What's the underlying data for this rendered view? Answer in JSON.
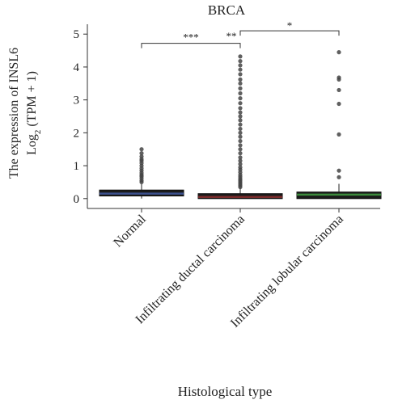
{
  "chart_data": {
    "type": "box",
    "title": "BRCA",
    "ylabel_line1": "The expression of INSL6",
    "ylabel_line2_prefix": "Log",
    "ylabel_line2_sub": "2",
    "ylabel_line2_suffix": " (TPM + 1)",
    "xlabel": "Histological type",
    "ylim": [
      -0.3,
      5.3
    ],
    "yticks": [
      "0",
      "1",
      "2",
      "3",
      "4",
      "5"
    ],
    "categories": [
      "Normal",
      "Infiltrating ductal carcinoma",
      "Infiltrating lobular carcinoma"
    ],
    "boxes": [
      {
        "name": "Normal",
        "color": "#3b4f8c",
        "q1": 0.08,
        "median": 0.15,
        "q3": 0.26,
        "whisker_low": 0.0,
        "whisker_high": 0.45,
        "outliers": [
          0.5,
          0.55,
          0.62,
          0.68,
          0.72,
          0.78,
          0.85,
          0.92,
          1.0,
          1.08,
          1.15,
          1.2,
          1.28,
          1.38,
          1.5
        ]
      },
      {
        "name": "Infiltrating ductal carcinoma",
        "color": "#7a2a2a",
        "q1": 0.0,
        "median": 0.05,
        "q3": 0.15,
        "whisker_low": 0.0,
        "whisker_high": 0.33,
        "outliers": [
          0.35,
          0.4,
          0.45,
          0.5,
          0.55,
          0.6,
          0.66,
          0.72,
          0.8,
          0.88,
          0.95,
          1.05,
          1.15,
          1.25,
          1.38,
          1.5,
          1.62,
          1.75,
          1.88,
          2.0,
          2.12,
          2.25,
          2.38,
          2.5,
          2.62,
          2.75,
          2.9,
          3.05,
          3.2,
          3.35,
          3.5,
          3.62,
          3.78,
          3.92,
          4.05,
          4.18,
          4.32
        ]
      },
      {
        "name": "Infiltrating lobular carcinoma",
        "color": "#3c8a3c",
        "q1": 0.0,
        "median": 0.12,
        "q3": 0.2,
        "whisker_low": 0.0,
        "whisker_high": 0.45,
        "outliers": [
          0.65,
          0.85,
          1.95,
          2.88,
          3.3,
          3.62,
          3.68,
          4.45
        ]
      }
    ],
    "significance": [
      {
        "from": 0,
        "to": 1,
        "y": 4.72,
        "label": "***"
      },
      {
        "from": 1,
        "to": 2,
        "y": 5.1,
        "label": "*"
      },
      {
        "from": 0,
        "to": 2,
        "y": 5.1,
        "label": "**"
      }
    ]
  }
}
